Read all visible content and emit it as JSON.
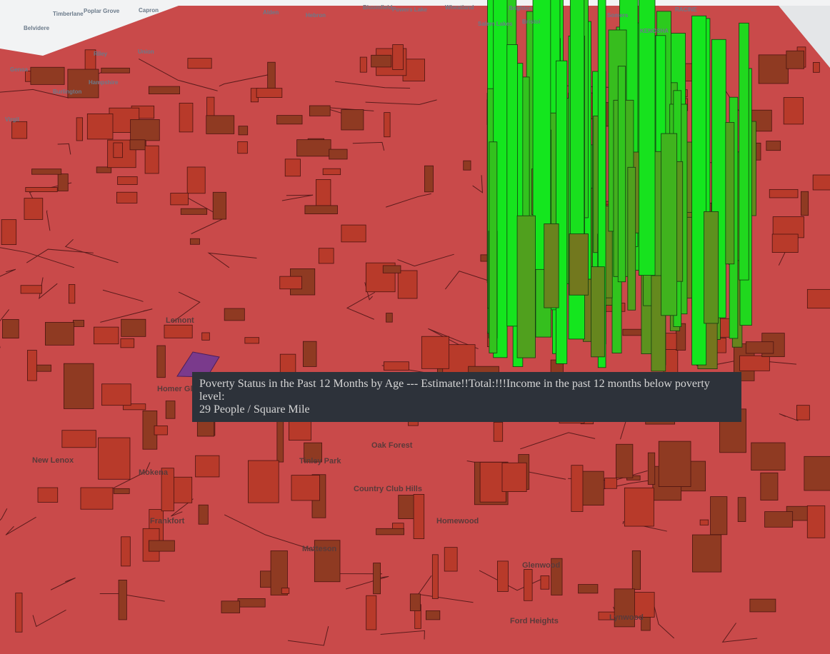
{
  "map": {
    "basemap_labels": [
      "Timberlane",
      "Poplar Grove",
      "Capron",
      "Belvidere",
      "Alden",
      "Hebron",
      "Bloomfield",
      "Powers Lake",
      "Wheatland",
      "Brighton",
      "Salem Lakes",
      "Bristol",
      "Somers",
      "KENOSHA",
      "RACINE"
    ],
    "place_labels": [
      "Riley",
      "Union",
      "Genoa",
      "Hampshire",
      "Burlington",
      "Virgil",
      "Lemont",
      "Homer Glen",
      "New Lenox",
      "Mokena",
      "Frankfort",
      "Tinley Park",
      "Oak Forest",
      "Country Club Hills",
      "Homewood",
      "Matteson",
      "Glenwood",
      "Ford Heights",
      "Lynwood"
    ]
  },
  "tooltip": {
    "title": "Poverty Status in the Past 12 Months by Age --- Estimate!!Total:!!!Income in the past 12 months below poverty level:",
    "value": "29 People / Square Mile"
  }
}
